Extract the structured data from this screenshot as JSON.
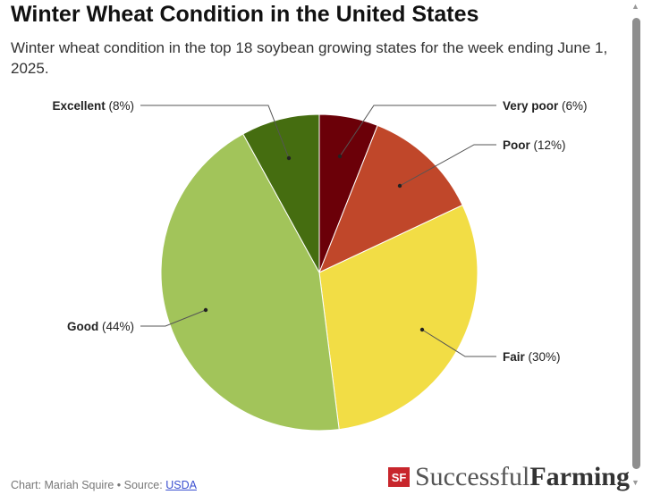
{
  "title": "Winter Wheat Condition in the United States",
  "subtitle": "Winter wheat condition in the top 18 soybean growing states for the week ending June 1, 2025.",
  "footer": {
    "chart_by": "Chart: Mariah Squire • Source: ",
    "source_link": "USDA"
  },
  "logo": {
    "mark": "SF",
    "word1": "Successful",
    "word2": "Farming"
  },
  "chart_data": {
    "type": "pie",
    "title": "Winter Wheat Condition in the United States",
    "start": "12 o'clock, clockwise",
    "slices": [
      {
        "name": "Very poor",
        "value": 6,
        "pct": "(6%)",
        "color": "#6b0008"
      },
      {
        "name": "Poor",
        "value": 12,
        "pct": "(12%)",
        "color": "#c0472a"
      },
      {
        "name": "Fair",
        "value": 30,
        "pct": "(30%)",
        "color": "#f2dd45"
      },
      {
        "name": "Good",
        "value": 44,
        "pct": "(44%)",
        "color": "#a2c45a"
      },
      {
        "name": "Excellent",
        "value": 8,
        "pct": "(8%)",
        "color": "#456d10"
      }
    ]
  }
}
